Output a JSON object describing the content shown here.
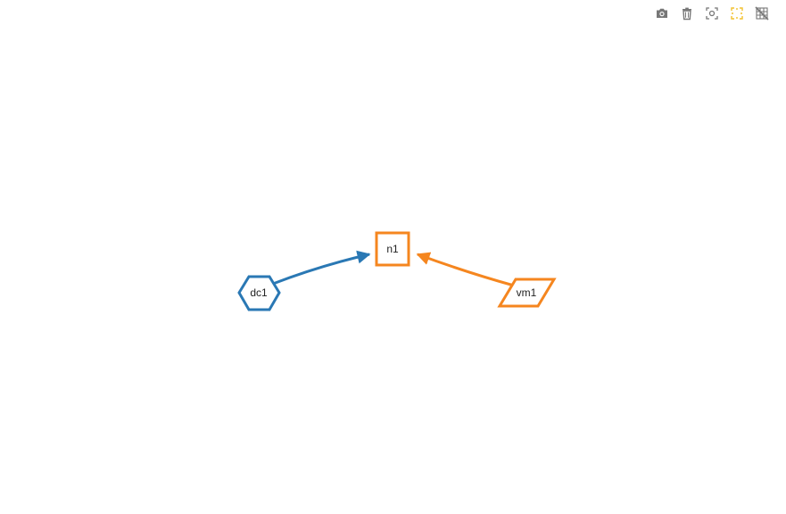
{
  "toolbar": {
    "tools": [
      {
        "name": "camera-icon",
        "color": "#777777"
      },
      {
        "name": "trash-icon",
        "color": "#777777"
      },
      {
        "name": "focus-icon",
        "color": "#777777"
      },
      {
        "name": "select-area-icon",
        "color": "#f2c12e"
      },
      {
        "name": "grid-off-icon",
        "color": "#777777"
      }
    ]
  },
  "graph": {
    "nodes": [
      {
        "id": "dc1",
        "label": "dc1",
        "shape": "hexagon",
        "color": "#2a78b4"
      },
      {
        "id": "n1",
        "label": "n1",
        "shape": "square",
        "color": "#f5861f"
      },
      {
        "id": "vm1",
        "label": "vm1",
        "shape": "parallelogram",
        "color": "#f5861f"
      }
    ],
    "edges": [
      {
        "from": "dc1",
        "to": "n1",
        "color": "#2a78b4"
      },
      {
        "from": "vm1",
        "to": "n1",
        "color": "#f5861f"
      }
    ]
  }
}
